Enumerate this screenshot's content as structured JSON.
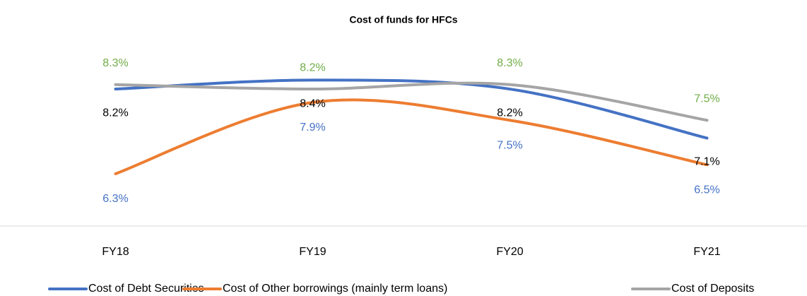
{
  "chart_data": {
    "type": "line",
    "title": "Cost of funds for HFCs",
    "categories": [
      "FY18",
      "FY19",
      "FY20",
      "FY21"
    ],
    "series": [
      {
        "name": "Cost of Debt Securities",
        "color": "#4472c4",
        "label_color": "#000000",
        "values": [
          8.2,
          8.4,
          8.2,
          7.1
        ],
        "value_labels": [
          "8.2%",
          "8.4%",
          "8.2%",
          "7.1%"
        ]
      },
      {
        "name": "Cost of Other borrowings (mainly term loans)",
        "color": "#ed7d31",
        "label_color": "#4472c4",
        "values": [
          6.3,
          7.9,
          7.5,
          6.5
        ],
        "value_labels": [
          "6.3%",
          "7.9%",
          "7.5%",
          "6.5%"
        ]
      },
      {
        "name": "Cost of Deposits",
        "color": "#a5a5a5",
        "label_color": "#70ad47",
        "values": [
          8.3,
          8.2,
          8.3,
          7.5
        ],
        "value_labels": [
          "8.3%",
          "8.2%",
          "8.3%",
          "7.5%"
        ]
      }
    ],
    "ylim": [
      5,
      9.5
    ],
    "legend": "bottom",
    "smooth": true
  }
}
